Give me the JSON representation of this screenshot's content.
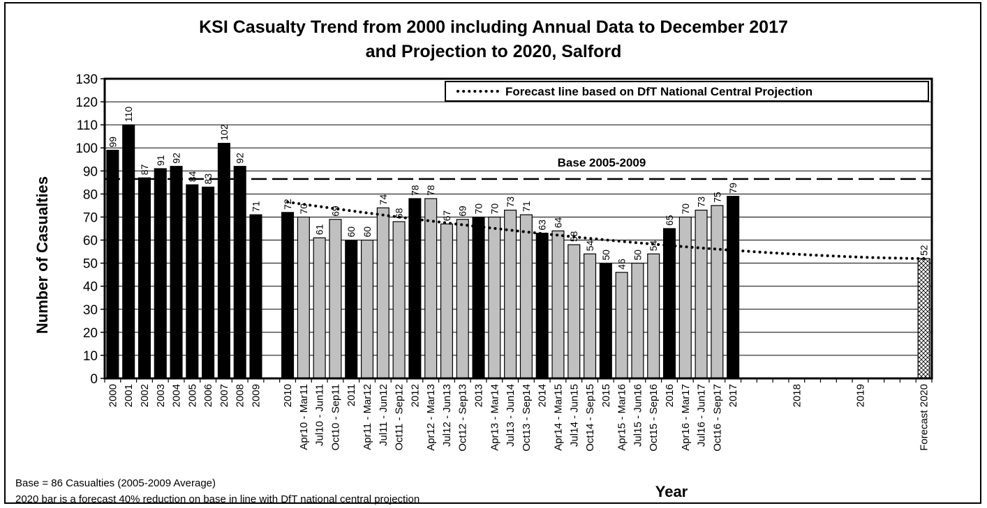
{
  "chart_data": {
    "type": "bar",
    "title_line1": "KSI Casualty Trend from 2000 including Annual Data to December 2017",
    "title_line2": "and Projection to 2020, Salford",
    "xlabel": "Year",
    "ylabel": "Number of Casualties",
    "ylim": [
      0,
      130
    ],
    "yticks": [
      0,
      10,
      20,
      30,
      40,
      50,
      60,
      70,
      80,
      90,
      100,
      110,
      120,
      130
    ],
    "grid": true,
    "categories": [
      "2000",
      "2001",
      "2002",
      "2003",
      "2004",
      "2005",
      "2006",
      "2007",
      "2008",
      "2009",
      "",
      "2010",
      "Apr10 - Mar11",
      "Jul10 - Jun11",
      "Oct10 - Sep11",
      "2011",
      "Apr11 - Mar12",
      "Jul11 - Jun12",
      "Oct11 - Sep12",
      "2012",
      "Apr12 - Mar13",
      "Jul12 - Jun13",
      "Oct12 - Sep13",
      "2013",
      "Apr13 - Mar14",
      "Jul13 - Jun14",
      "Oct13 - Sep14",
      "2014",
      "Apr14 - Mar15",
      "Jul14 - Jun15",
      "Oct14 - Sep15",
      "2015",
      "Apr15 - Mar16",
      "Jul15 - Jun16",
      "Oct15 - Sep16",
      "2016",
      "Apr16 - Mar17",
      "Jul16 - Jun17",
      "Oct16 - Sep17",
      "2017",
      "",
      "",
      "",
      "2018",
      "",
      "",
      "",
      "2019",
      "",
      "",
      "",
      "Forecast 2020"
    ],
    "values": [
      99,
      110,
      87,
      91,
      92,
      84,
      83,
      102,
      92,
      71,
      null,
      72,
      70,
      61,
      69,
      60,
      60,
      74,
      68,
      78,
      78,
      67,
      69,
      70,
      70,
      73,
      71,
      63,
      64,
      58,
      54,
      50,
      46,
      50,
      54,
      65,
      70,
      73,
      75,
      79,
      0,
      0,
      0,
      0,
      0,
      0,
      0,
      0,
      0,
      0,
      0,
      52
    ],
    "bar_kind": [
      "a",
      "a",
      "a",
      "a",
      "a",
      "a",
      "a",
      "a",
      "a",
      "a",
      "none",
      "a",
      "r",
      "r",
      "r",
      "a",
      "r",
      "r",
      "r",
      "a",
      "r",
      "r",
      "r",
      "a",
      "r",
      "r",
      "r",
      "a",
      "r",
      "r",
      "r",
      "a",
      "r",
      "r",
      "r",
      "a",
      "r",
      "r",
      "r",
      "a",
      "none",
      "none",
      "none",
      "none",
      "none",
      "none",
      "none",
      "none",
      "none",
      "none",
      "none",
      "f"
    ],
    "data_labels": [
      "99",
      "110",
      "87",
      "91",
      "92",
      "84",
      "83",
      "102",
      "92",
      "71",
      "",
      "72",
      "70",
      "61",
      "69",
      "60",
      "60",
      "74",
      "68",
      "78",
      "78",
      "67",
      "69",
      "70",
      "70",
      "73",
      "71",
      "63",
      "64",
      "58",
      "54",
      "50",
      "46",
      "50",
      "54",
      "65",
      "70",
      "73",
      "75",
      "79",
      "",
      "",
      "",
      "",
      "",
      "",
      "",
      "",
      "",
      "",
      "",
      "52"
    ],
    "forecast_series": {
      "name": "Forecast line based on DfT National Central Projection",
      "x_start": "2010",
      "x_end": "Forecast 2020",
      "y_start": 76.5,
      "y_end": 52
    },
    "baseline": {
      "label": "Base 2005-2009",
      "value": 86.5
    },
    "legend_position": "top-right",
    "colors": {
      "annual": "#000000",
      "rolling": "#c0c0c0",
      "forecast_fill": "#ffffff"
    }
  },
  "notes": {
    "line1": "Base = 86 Casualties (2005-2009 Average)",
    "line2": "2020 bar is a forecast 40% reduction on base in line with DfT national central projection"
  }
}
